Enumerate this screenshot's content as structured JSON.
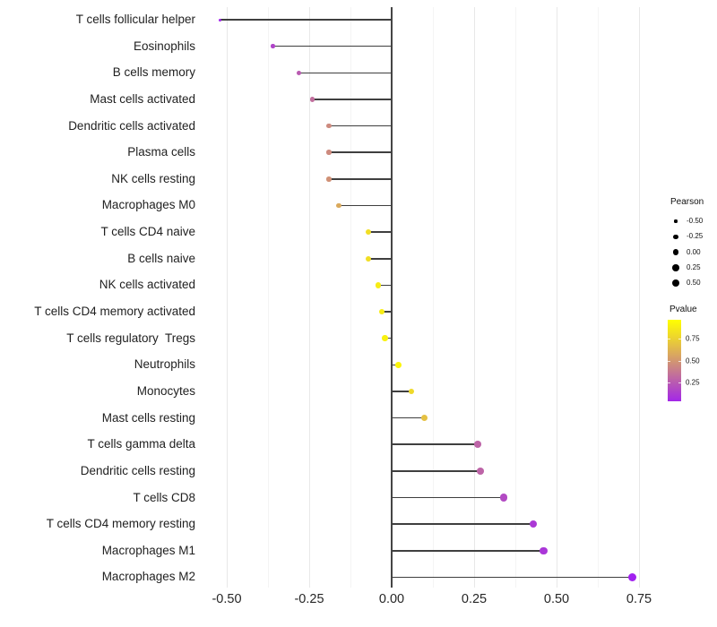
{
  "chart_data": {
    "type": "scatter",
    "variant": "lollipop-horizontal",
    "title": "",
    "xlabel": "",
    "ylabel": "",
    "xlim": [
      -0.545,
      0.8
    ],
    "grid": "vertical major and minor gridlines only, light grey on white",
    "zero_reference_line": 0,
    "x_tick_values": [
      -0.5,
      -0.25,
      0.0,
      0.25,
      0.5,
      0.75
    ],
    "x_tick_labels": [
      "-0.50",
      "-0.25",
      "0.00",
      "0.25",
      "0.50",
      "0.75"
    ],
    "x_minor_gridline_values": [
      -0.375,
      -0.125,
      0.125,
      0.375,
      0.625
    ],
    "size_encoding": "Pearson correlation (larger dot = higher Pearson)",
    "color_encoding": "Pvalue (purple = low, yellow = high)",
    "points": [
      {
        "label": "T cells follicular helper",
        "pearson": -0.52,
        "pvalue": 0.02
      },
      {
        "label": "Eosinophils",
        "pearson": -0.36,
        "pvalue": 0.16
      },
      {
        "label": "B cells memory",
        "pearson": -0.28,
        "pvalue": 0.25
      },
      {
        "label": "Mast cells activated",
        "pearson": -0.24,
        "pvalue": 0.33
      },
      {
        "label": "Dendritic cells activated",
        "pearson": -0.19,
        "pvalue": 0.45
      },
      {
        "label": "Plasma cells",
        "pearson": -0.19,
        "pvalue": 0.45
      },
      {
        "label": "NK cells resting",
        "pearson": -0.19,
        "pvalue": 0.48
      },
      {
        "label": "Macrophages M0",
        "pearson": -0.16,
        "pvalue": 0.58
      },
      {
        "label": "T cells CD4 naive",
        "pearson": -0.07,
        "pvalue": 0.8
      },
      {
        "label": "B cells naive",
        "pearson": -0.07,
        "pvalue": 0.8
      },
      {
        "label": "NK cells activated",
        "pearson": -0.04,
        "pvalue": 0.86
      },
      {
        "label": "T cells CD4 memory activated",
        "pearson": -0.03,
        "pvalue": 0.86
      },
      {
        "label": "T cells regulatory  Tregs",
        "pearson": -0.02,
        "pvalue": 0.88
      },
      {
        "label": "Neutrophils",
        "pearson": 0.02,
        "pvalue": 0.9
      },
      {
        "label": "Monocytes",
        "pearson": 0.06,
        "pvalue": 0.78
      },
      {
        "label": "Mast cells resting",
        "pearson": 0.1,
        "pvalue": 0.68
      },
      {
        "label": "T cells gamma delta",
        "pearson": 0.26,
        "pvalue": 0.29
      },
      {
        "label": "Dendritic cells resting",
        "pearson": 0.27,
        "pvalue": 0.29
      },
      {
        "label": "T cells CD8",
        "pearson": 0.34,
        "pvalue": 0.18
      },
      {
        "label": "T cells CD4 memory resting",
        "pearson": 0.43,
        "pvalue": 0.11
      },
      {
        "label": "Macrophages M1",
        "pearson": 0.46,
        "pvalue": 0.1
      },
      {
        "label": "Macrophages M2",
        "pearson": 0.73,
        "pvalue": 0.01
      }
    ],
    "legend": {
      "position": "right",
      "pearson": {
        "title": "Pearson",
        "items": [
          {
            "label": "-0.50",
            "value": -0.5
          },
          {
            "label": "-0.25",
            "value": -0.25
          },
          {
            "label": "0.00",
            "value": 0.0
          },
          {
            "label": "0.25",
            "value": 0.25
          },
          {
            "label": "0.50",
            "value": 0.5
          }
        ]
      },
      "pvalue": {
        "title": "Pvalue",
        "tick_labels": [
          "0.75",
          "0.50",
          "0.25"
        ],
        "low_color": "#a020f0",
        "high_color": "#ffff00",
        "domain": [
          0.005,
          0.94
        ]
      }
    }
  }
}
